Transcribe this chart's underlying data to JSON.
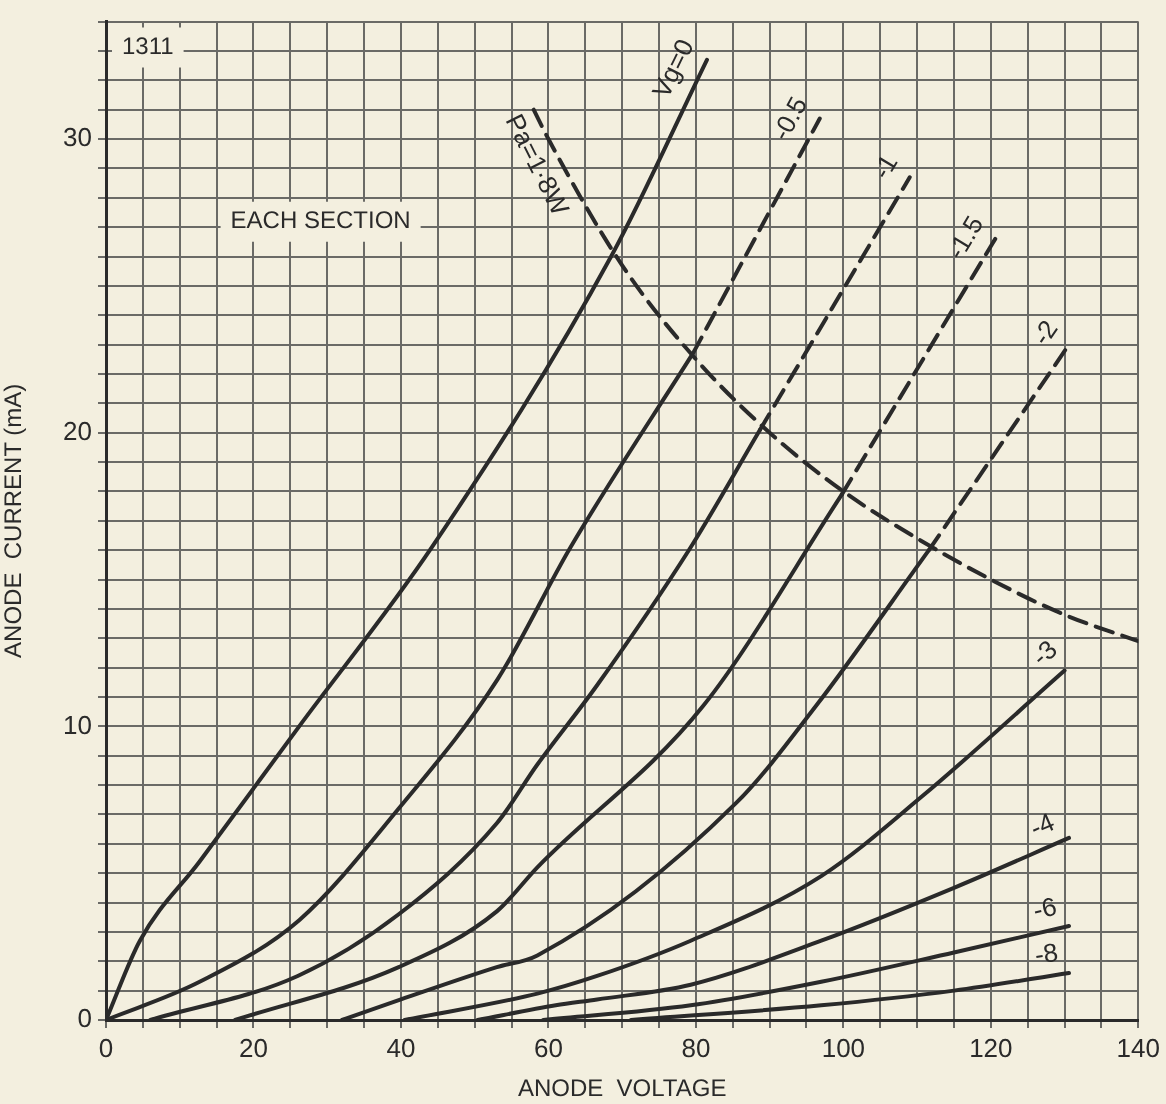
{
  "chart_data": {
    "type": "line",
    "xlabel": "ANODE  VOLTAGE",
    "ylabel": "ANODE  CURRENT (mA)",
    "annotations": [
      "1311",
      "EACH SECTION"
    ],
    "xlim": [
      0,
      140
    ],
    "ylim": [
      0,
      34
    ],
    "xticks": [
      0,
      {
        "value": 5,
        "label": null
      },
      {
        "value": 10,
        "label": null
      },
      {
        "value": 15,
        "label": null
      },
      20,
      {
        "value": 25,
        "label": null
      },
      {
        "value": 30,
        "label": null
      },
      {
        "value": 35,
        "label": null
      },
      40,
      {
        "value": 45,
        "label": null
      },
      {
        "value": 50,
        "label": null
      },
      {
        "value": 55,
        "label": null
      },
      60,
      {
        "value": 65,
        "label": null
      },
      {
        "value": 70,
        "label": null
      },
      {
        "value": 75,
        "label": null
      },
      80,
      {
        "value": 85,
        "label": null
      },
      {
        "value": 90,
        "label": null
      },
      {
        "value": 95,
        "label": null
      },
      100,
      {
        "value": 105,
        "label": null
      },
      {
        "value": 110,
        "label": null
      },
      {
        "value": 115,
        "label": null
      },
      120,
      {
        "value": 125,
        "label": null
      },
      {
        "value": 130,
        "label": null
      },
      {
        "value": 135,
        "label": null
      },
      140
    ],
    "yticks": [
      0,
      {
        "value": 1,
        "label": null
      },
      {
        "value": 2,
        "label": null
      },
      {
        "value": 3,
        "label": null
      },
      {
        "value": 4,
        "label": null
      },
      {
        "value": 5,
        "label": null
      },
      {
        "value": 6,
        "label": null
      },
      {
        "value": 7,
        "label": null
      },
      {
        "value": 8,
        "label": null
      },
      {
        "value": 9,
        "label": null
      },
      10,
      {
        "value": 11,
        "label": null
      },
      {
        "value": 12,
        "label": null
      },
      {
        "value": 13,
        "label": null
      },
      {
        "value": 14,
        "label": null
      },
      {
        "value": 15,
        "label": null
      },
      {
        "value": 16,
        "label": null
      },
      {
        "value": 17,
        "label": null
      },
      {
        "value": 18,
        "label": null
      },
      {
        "value": 19,
        "label": null
      },
      20,
      {
        "value": 21,
        "label": null
      },
      {
        "value": 22,
        "label": null
      },
      {
        "value": 23,
        "label": null
      },
      {
        "value": 24,
        "label": null
      },
      {
        "value": 25,
        "label": null
      },
      {
        "value": 26,
        "label": null
      },
      {
        "value": 27,
        "label": null
      },
      {
        "value": 28,
        "label": null
      },
      {
        "value": 29,
        "label": null
      },
      30,
      {
        "value": 31,
        "label": null
      },
      {
        "value": 32,
        "label": null
      },
      {
        "value": 33,
        "label": null
      },
      {
        "value": 34,
        "label": null
      }
    ],
    "grid": true,
    "marker": "none",
    "line_style": "solid",
    "series": [
      {
        "name": "Vg=0",
        "color": "#2a2a2a",
        "x": [
          0,
          4.6,
          12.7,
          26.2,
          44.2,
          68.5,
          81.5
        ],
        "values": [
          0,
          2.7,
          5.4,
          10,
          16.1,
          26,
          32.7
        ]
      },
      {
        "color": "#2a2a2a",
        "x": [
          0,
          12.7,
          26.2,
          39.7,
          53.1,
          63,
          79.6
        ],
        "values": [
          0,
          1.3,
          3.4,
          7.2,
          11.6,
          16.1,
          22.7
        ]
      },
      {
        "name": "-0.5",
        "color": "#2a2a2a",
        "line_style": "dashed",
        "x": [
          79.6,
          96.8
        ],
        "values": [
          22.7,
          30.7
        ]
      },
      {
        "color": "#2a2a2a",
        "x": [
          6,
          26,
          39.7,
          53,
          58.5,
          66.6,
          79.3,
          88.7
        ],
        "values": [
          0,
          1.5,
          3.6,
          6.7,
          8.7,
          11.4,
          16.1,
          20.1
        ]
      },
      {
        "name": "-1",
        "color": "#2a2a2a",
        "line_style": "dashed",
        "x": [
          88.7,
          109
        ],
        "values": [
          20.1,
          28.7
        ]
      },
      {
        "color": "#2a2a2a",
        "x": [
          17.5,
          39.7,
          53,
          58.5,
          81,
          99.8
        ],
        "values": [
          0,
          1.8,
          3.7,
          5.2,
          10.7,
          17.9
        ]
      },
      {
        "name": "-1.5",
        "color": "#2a2a2a",
        "line_style": "dashed",
        "x": [
          99.8,
          120.6
        ],
        "values": [
          17.9,
          26.6
        ]
      },
      {
        "color": "#2a2a2a",
        "x": [
          32,
          40,
          53,
          58.5,
          85.5,
          96.3,
          111.6
        ],
        "values": [
          0,
          0.7,
          1.8,
          2.2,
          7.4,
          10.7,
          16
        ]
      },
      {
        "name": "-2",
        "color": "#2a2a2a",
        "line_style": "dashed",
        "x": [
          111.6,
          130.6
        ],
        "values": [
          16,
          23
        ]
      },
      {
        "name": "-3",
        "color": "#2a2a2a",
        "x": [
          40.5,
          58.5,
          66.6,
          79.3,
          97,
          110.6,
          130
        ],
        "values": [
          0,
          0.9,
          1.5,
          2.7,
          4.9,
          7.6,
          11.9
        ]
      },
      {
        "name": "-4",
        "color": "#2a2a2a",
        "x": [
          50.4,
          61,
          66.6,
          79.3,
          97,
          115,
          130.6
        ],
        "values": [
          0,
          0.5,
          0.7,
          1.2,
          2.7,
          4.5,
          6.2
        ]
      },
      {
        "name": "-6",
        "color": "#2a2a2a",
        "x": [
          59.3,
          79.3,
          97,
          115,
          130.6
        ],
        "values": [
          0,
          0.5,
          1.3,
          2.3,
          3.2
        ]
      },
      {
        "name": "-8",
        "color": "#2a2a2a",
        "x": [
          71.2,
          97,
          115,
          130.6
        ],
        "values": [
          0,
          0.5,
          1.0,
          1.6
        ]
      },
      {
        "name": "Pa=1·8W",
        "color": "#2a2a2a",
        "line_style": "dashed",
        "x": [
          58,
          60,
          70,
          80,
          90,
          100,
          110,
          120,
          130,
          140
        ],
        "values": [
          31,
          30,
          25.7,
          22.5,
          20,
          18,
          16.4,
          15,
          13.8,
          12.9
        ]
      }
    ]
  }
}
